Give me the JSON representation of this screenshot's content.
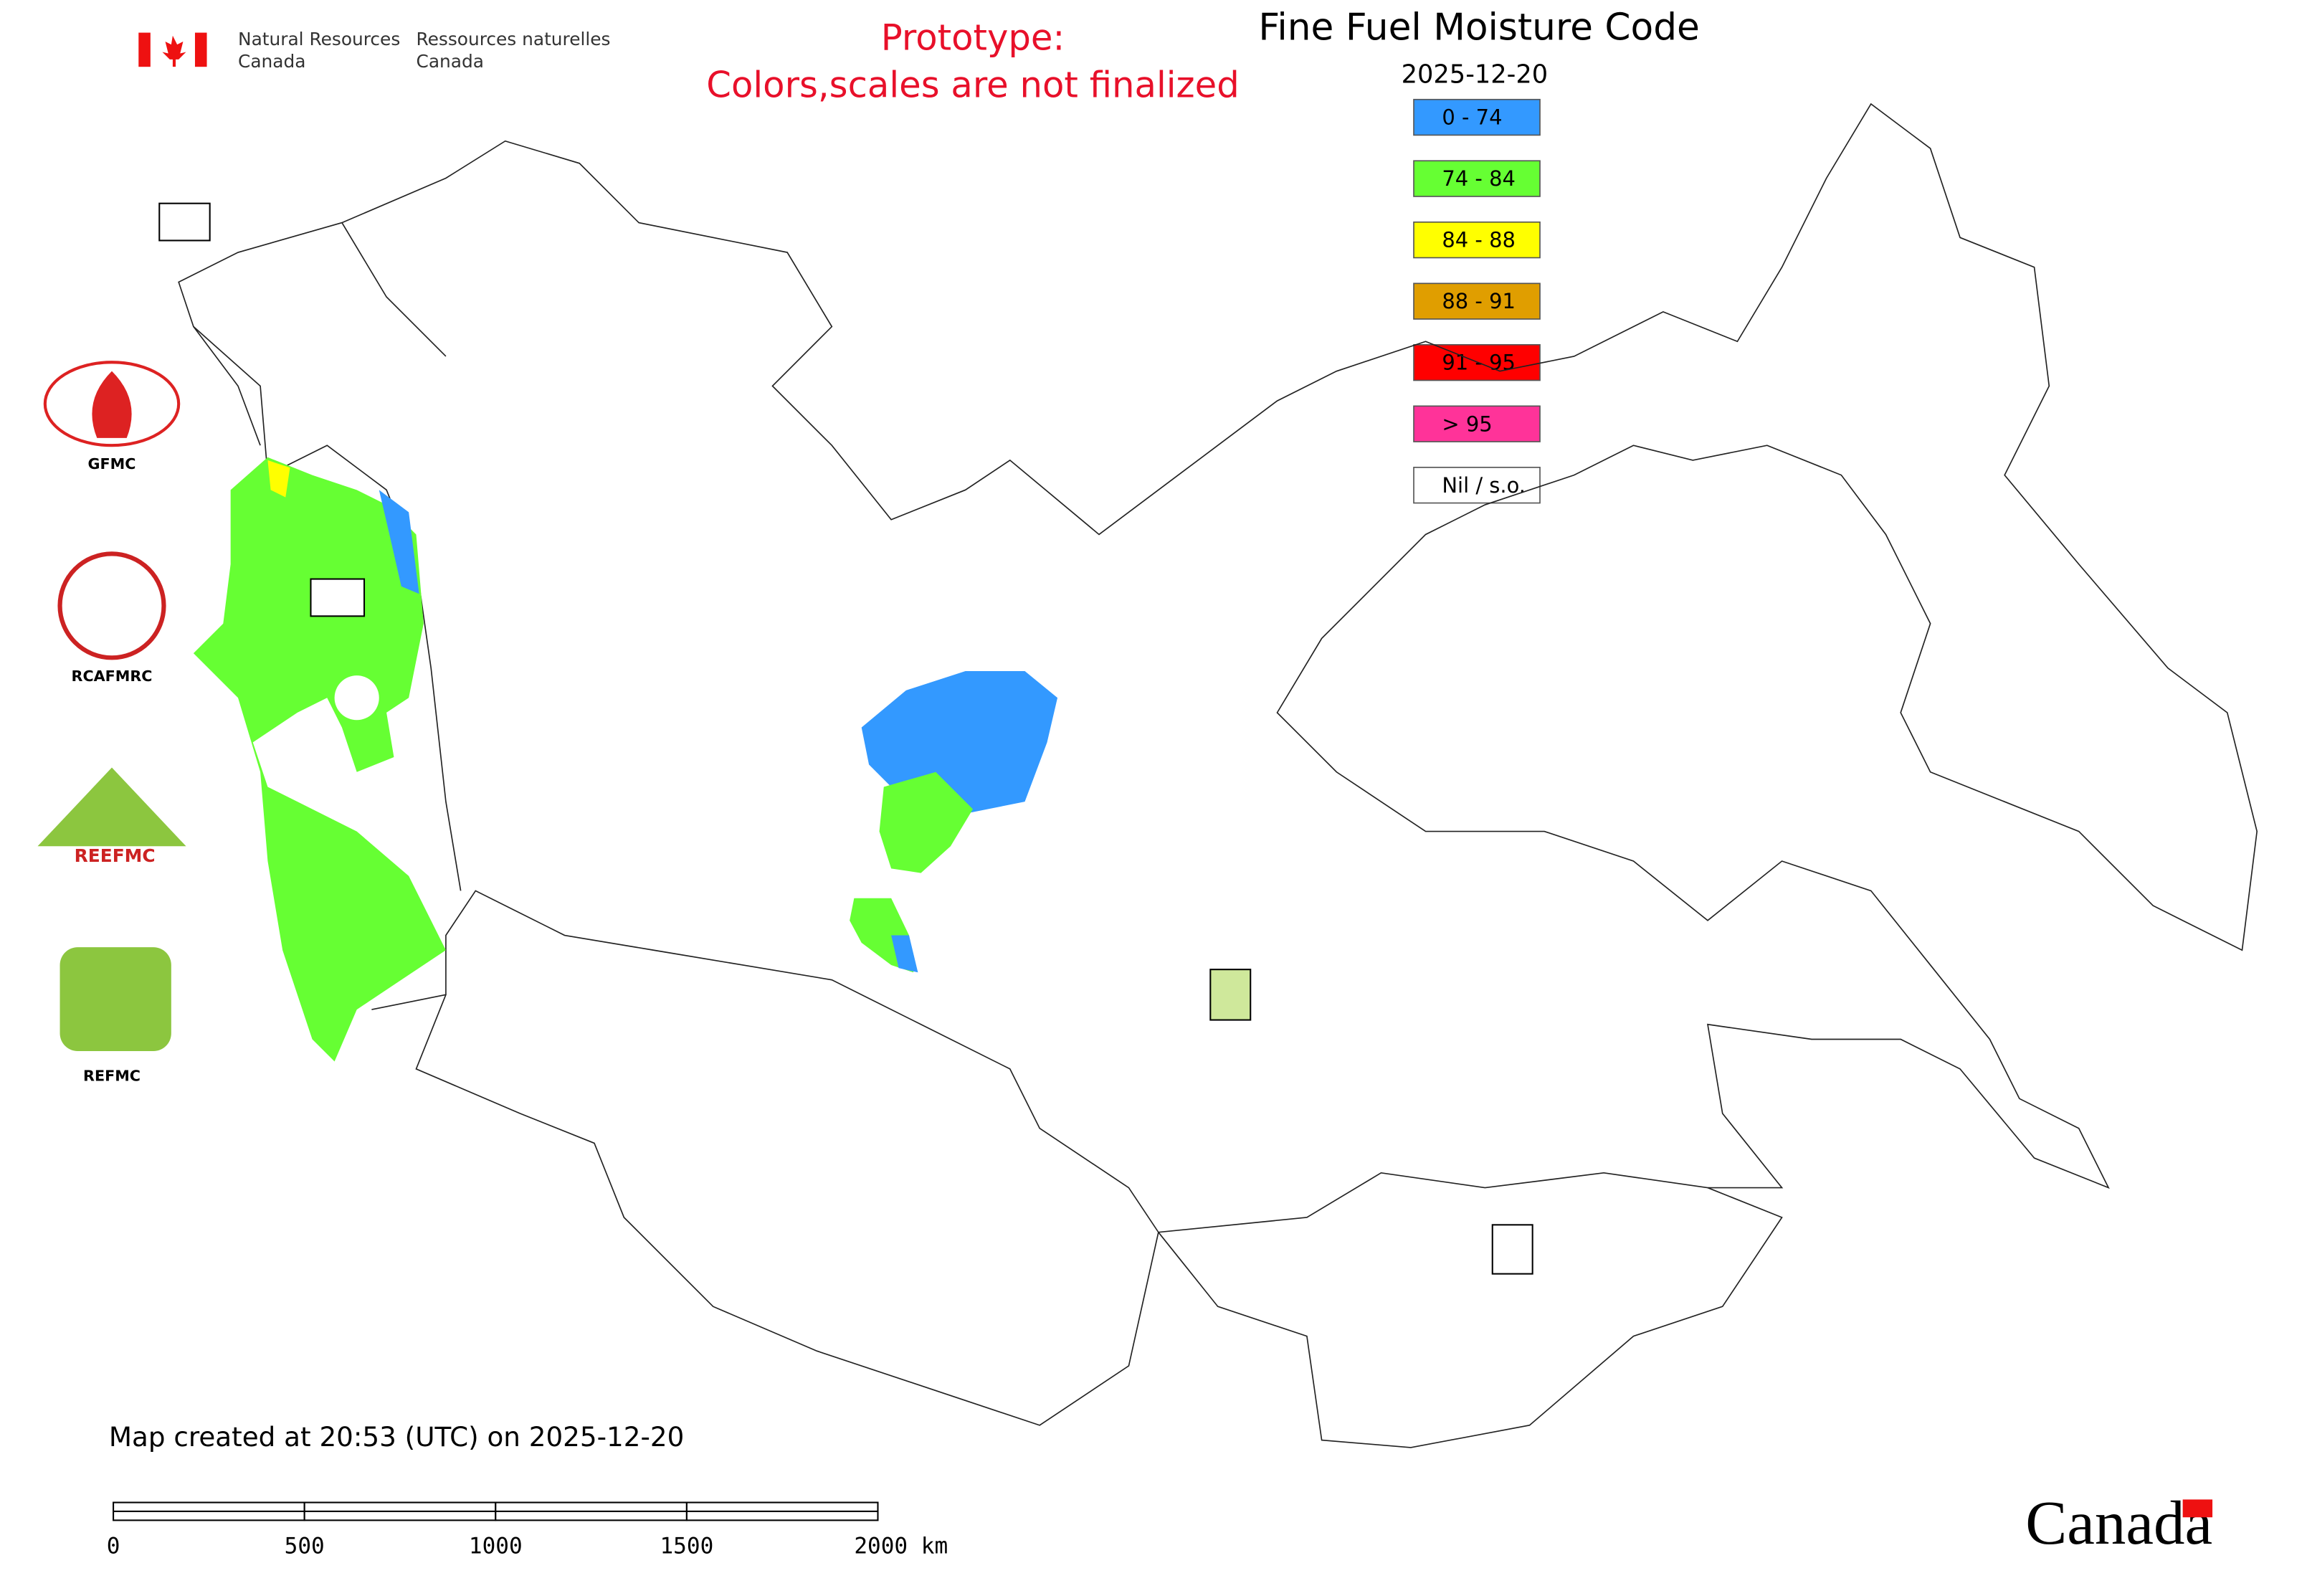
{
  "header": {
    "agency": [
      "Natural Resources",
      "Canada"
    ],
    "agency_fr": [
      "Ressources naturelles",
      "Canada"
    ],
    "notice": [
      "Prototype:",
      "Colors,scales are not finalized"
    ]
  },
  "map": {
    "title": "Fine Fuel Moisture Code",
    "date": "2025-12-20",
    "legend": [
      {
        "label": "0 - 74",
        "color": "#3399ff"
      },
      {
        "label": "74 - 84",
        "color": "#66ff33"
      },
      {
        "label": "84 - 88",
        "color": "#ffff00"
      },
      {
        "label": "88 - 91",
        "color": "#e09e00"
      },
      {
        "label": "91 - 95",
        "color": "#ff0000"
      },
      {
        "label": "> 95",
        "color": "#ff3399"
      },
      {
        "label": "Nil / s.o.",
        "color": "#ffffff"
      }
    ],
    "footer": "Map created at 20:53 (UTC) on 2025-12-20",
    "scale_bar": [
      "0",
      "500",
      "1000",
      "1500",
      "2000 km"
    ]
  },
  "logos": [
    "GFMC",
    "RCAFMRC",
    "REEFMC",
    "REFMC"
  ],
  "wordmark": "Canada"
}
